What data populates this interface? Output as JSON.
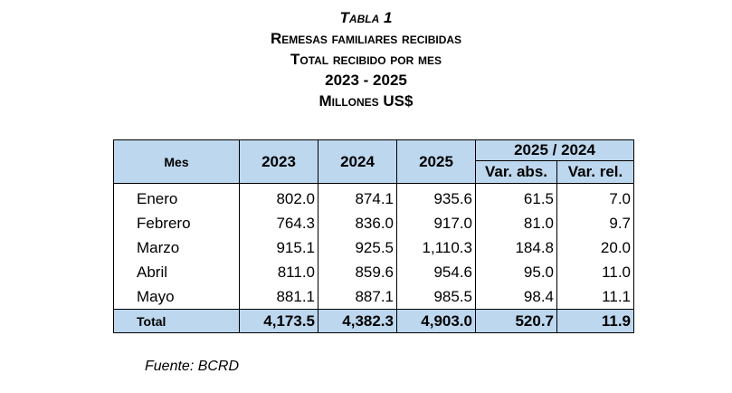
{
  "title": {
    "line1": "Tabla 1",
    "line2": "Remesas familiares recibidas",
    "line3": "Total recibido por mes",
    "line4": "2023 - 2025",
    "line5": "Millones US$"
  },
  "table": {
    "headers": {
      "mes": "Mes",
      "y2023": "2023",
      "y2024": "2024",
      "y2025": "2025",
      "comparison": "2025 / 2024",
      "var_abs": "Var. abs.",
      "var_rel": "Var. rel."
    },
    "rows": [
      {
        "mes": "Enero",
        "y2023": "802.0",
        "y2024": "874.1",
        "y2025": "935.6",
        "var_abs": "61.5",
        "var_rel": "7.0"
      },
      {
        "mes": "Febrero",
        "y2023": "764.3",
        "y2024": "836.0",
        "y2025": "917.0",
        "var_abs": "81.0",
        "var_rel": "9.7"
      },
      {
        "mes": "Marzo",
        "y2023": "915.1",
        "y2024": "925.5",
        "y2025": "1,110.3",
        "var_abs": "184.8",
        "var_rel": "20.0"
      },
      {
        "mes": "Abril",
        "y2023": "811.0",
        "y2024": "859.6",
        "y2025": "954.6",
        "var_abs": "95.0",
        "var_rel": "11.0"
      },
      {
        "mes": "Mayo",
        "y2023": "881.1",
        "y2024": "887.1",
        "y2025": "985.5",
        "var_abs": "98.4",
        "var_rel": "11.1"
      }
    ],
    "total": {
      "label": "Total",
      "y2023": "4,173.5",
      "y2024": "4,382.3",
      "y2025": "4,903.0",
      "var_abs": "520.7",
      "var_rel": "11.9"
    }
  },
  "source": "Fuente: BCRD",
  "colors": {
    "header_fill": "#bdd7ee",
    "border": "#000000"
  }
}
